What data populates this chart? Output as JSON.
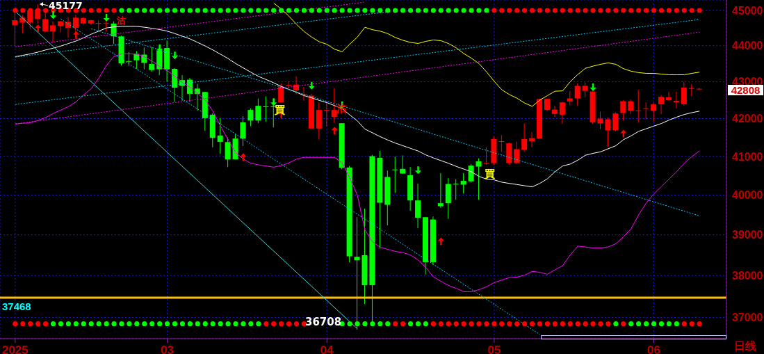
{
  "chart_data": {
    "type": "candlestick",
    "log": true,
    "grid": true,
    "categories": [
      "2025",
      null,
      null,
      null,
      null,
      null,
      null,
      null,
      null,
      null,
      null,
      null,
      null,
      null,
      null,
      null,
      null,
      null,
      null,
      null,
      "03",
      null,
      null,
      null,
      null,
      null,
      null,
      null,
      null,
      null,
      null,
      null,
      null,
      null,
      null,
      null,
      null,
      null,
      null,
      null,
      null,
      "04",
      null,
      null,
      null,
      null,
      null,
      null,
      null,
      null,
      null,
      null,
      null,
      null,
      null,
      null,
      null,
      null,
      null,
      null,
      null,
      null,
      null,
      "05",
      null,
      null,
      null,
      null,
      null,
      null,
      null,
      null,
      null,
      null,
      null,
      null,
      null,
      null,
      null,
      null,
      null,
      null,
      null,
      null,
      "06",
      null,
      null,
      null,
      null,
      null,
      null
    ],
    "ohlc": [
      [
        44575,
        45030,
        44000,
        44719
      ],
      [
        44650,
        44875,
        44344,
        44794
      ],
      [
        44650,
        45060,
        44469,
        45000
      ],
      [
        44762,
        45177,
        44625,
        45030
      ],
      [
        44406,
        44940,
        44375,
        44750
      ],
      [
        44406,
        44688,
        44094,
        44575
      ],
      [
        44562,
        44700,
        44375,
        44688
      ],
      [
        44500,
        44812,
        44219,
        44675
      ],
      [
        44500,
        44875,
        44344,
        44794
      ],
      [
        44625,
        44812,
        44581,
        44781
      ],
      [
        44625,
        44731,
        44594,
        44719
      ],
      [
        44630,
        44719,
        44406,
        44640
      ],
      [
        44630,
        44700,
        44406,
        44645
      ],
      [
        44625,
        44688,
        44050,
        44262
      ],
      [
        44262,
        44281,
        43441,
        43507
      ],
      [
        43570,
        43822,
        43441,
        43555
      ],
      [
        43770,
        43849,
        43355,
        43592
      ],
      [
        43750,
        43947,
        43342,
        43520
      ],
      [
        43487,
        43967,
        43276,
        43322
      ],
      [
        43868,
        44000,
        43178,
        43342
      ],
      [
        43934,
        44145,
        42994,
        43342
      ],
      [
        43355,
        43375,
        42450,
        42838
      ],
      [
        43046,
        43180,
        42481,
        42888
      ],
      [
        43056,
        43106,
        42450,
        42669
      ],
      [
        42812,
        42938,
        42212,
        42669
      ],
      [
        42719,
        42719,
        41673,
        42012
      ],
      [
        42106,
        42137,
        41240,
        41488
      ],
      [
        41550,
        42025,
        41068,
        41383
      ],
      [
        41376,
        41500,
        40720,
        40922
      ],
      [
        41469,
        41580,
        40920,
        40922
      ],
      [
        41901,
        42062,
        41272,
        41469
      ],
      [
        42231,
        42275,
        41796,
        41950
      ],
      [
        42343,
        42540,
        41876,
        41950
      ],
      [
        42330,
        42600,
        41920,
        42320
      ],
      [
        42330,
        42540,
        41765,
        42320
      ],
      [
        42437,
        42950,
        42437,
        42868
      ],
      [
        42890,
        43012,
        42825,
        42910
      ],
      [
        42762,
        43150,
        42669,
        42919
      ],
      [
        42650,
        42856,
        42481,
        42662
      ],
      [
        41735,
        42669,
        41735,
        42619
      ],
      [
        41735,
        42437,
        41444,
        42231
      ],
      [
        42220,
        42419,
        41796,
        42231
      ],
      [
        42043,
        42825,
        41889,
        42231
      ],
      [
        41876,
        41876,
        40663,
        40705
      ],
      [
        40711,
        40753,
        38326,
        38469
      ],
      [
        38457,
        39441,
        36708,
        38371
      ],
      [
        38497,
        39659,
        37317,
        37767
      ],
      [
        41006,
        41040,
        36830,
        37767
      ],
      [
        40964,
        41145,
        38657,
        39806
      ],
      [
        40464,
        40633,
        39235,
        39753
      ],
      [
        40660,
        40994,
        40060,
        40645
      ],
      [
        40675,
        41025,
        40545,
        40554
      ],
      [
        40512,
        40723,
        39600,
        39865
      ],
      [
        39865,
        40295,
        39165,
        39428
      ],
      [
        39441,
        39441,
        38028,
        38326
      ],
      [
        39383,
        39459,
        38257,
        38326
      ],
      [
        39794,
        40565,
        39676,
        39718
      ],
      [
        40286,
        40440,
        39400,
        39794
      ],
      [
        40290,
        40410,
        39880,
        40280
      ],
      [
        40365,
        40565,
        40040,
        40268
      ],
      [
        40759,
        40800,
        40320,
        40353
      ],
      [
        40870,
        40948,
        39880,
        40735
      ],
      [
        40818,
        41240,
        40780,
        40830
      ],
      [
        40825,
        41520,
        40783,
        41457
      ],
      [
        41390,
        41560,
        41117,
        41400
      ],
      [
        40825,
        41362,
        40783,
        41342
      ],
      [
        40825,
        41390,
        40807,
        41190
      ],
      [
        41170,
        41870,
        41117,
        41457
      ],
      [
        41400,
        41640,
        41240,
        41480
      ],
      [
        41470,
        42531,
        41470,
        42525
      ],
      [
        42231,
        42544,
        42200,
        42531
      ],
      [
        42125,
        42343,
        42043,
        42243
      ],
      [
        42105,
        42450,
        41860,
        42437
      ],
      [
        42462,
        42750,
        42356,
        42544
      ],
      [
        42544,
        42950,
        42343,
        42887
      ],
      [
        42750,
        42981,
        42575,
        42887
      ],
      [
        41900,
        42744,
        41858,
        42731
      ],
      [
        41870,
        42187,
        41716,
        42000
      ],
      [
        41685,
        42031,
        41259,
        41981
      ],
      [
        41691,
        42168,
        41660,
        42137
      ],
      [
        42150,
        42494,
        41950,
        42469
      ],
      [
        42212,
        42512,
        42125,
        42469
      ],
      [
        42205,
        42775,
        41890,
        42218
      ],
      [
        42275,
        42437,
        41980,
        42281
      ],
      [
        42212,
        42437,
        41920,
        42381
      ],
      [
        42387,
        42637,
        42125,
        42587
      ],
      [
        42494,
        42719,
        42481,
        42575
      ],
      [
        42437,
        42731,
        42275,
        42481
      ],
      [
        42387,
        42994,
        42343,
        42837
      ],
      [
        42820,
        42931,
        42606,
        42825
      ],
      [
        42800,
        42830,
        42780,
        42808
      ]
    ],
    "series": [
      {
        "type": "line",
        "color": "#ffffff",
        "values": [
          43691,
          43730,
          43770,
          43820,
          43880,
          43930,
          43990,
          44060,
          44130,
          44220,
          44325,
          44410,
          44500,
          44530,
          44544,
          44544,
          44544,
          44520,
          44490,
          44455,
          44410,
          44340,
          44265,
          44190,
          44090,
          43990,
          43880,
          43760,
          43640,
          43500,
          43380,
          43260,
          43145,
          43060,
          42970,
          42870,
          42790,
          42710,
          42620,
          42560,
          42490,
          42430,
          42350,
          42270,
          42100,
          41940,
          41720,
          41620,
          41520,
          41430,
          41350,
          41280,
          41210,
          41140,
          41040,
          40960,
          40890,
          40820,
          40740,
          40670,
          40600,
          40480,
          40410,
          40390,
          40331,
          40300,
          40271,
          40240,
          40211,
          40300,
          40420,
          40600,
          40750,
          40800,
          40900,
          41030,
          41080,
          41120,
          41200,
          41280,
          41440,
          41540,
          41660,
          41730,
          41800,
          41870,
          41960,
          42040,
          42110,
          42160,
          42200
        ]
      },
      {
        "type": "line",
        "color": "#ff00ff",
        "values": [
          41858,
          41875,
          41889,
          41950,
          42030,
          42137,
          42230,
          42323,
          42450,
          42640,
          42810,
          43100,
          43450,
          43700,
          43770,
          43770,
          43760,
          43690,
          43570,
          43420,
          43300,
          43150,
          42970,
          42850,
          42680,
          42500,
          42200,
          41800,
          41440,
          41100,
          40930,
          40820,
          40780,
          40750,
          40720,
          40760,
          40830,
          40930,
          40976,
          40976,
          40976,
          40976,
          40976,
          40830,
          40450,
          40000,
          39120,
          38830,
          38690,
          38640,
          38590,
          38560,
          38500,
          38380,
          38200,
          37970,
          37860,
          37760,
          37690,
          37611,
          37611,
          37660,
          37730,
          37830,
          37890,
          37950,
          37961,
          38010,
          38100,
          38080,
          38030,
          38140,
          38240,
          38500,
          38720,
          38700,
          38674,
          38674,
          38700,
          38780,
          38950,
          39150,
          39500,
          39800,
          40030,
          40220,
          40410,
          40600,
          40820,
          40994,
          41145
        ]
      },
      {
        "type": "line",
        "color": "#ffff00",
        "values": [
          null,
          null,
          null,
          null,
          null,
          null,
          null,
          null,
          null,
          null,
          null,
          null,
          null,
          null,
          null,
          null,
          null,
          null,
          null,
          null,
          null,
          null,
          null,
          null,
          null,
          null,
          null,
          null,
          null,
          null,
          null,
          null,
          null,
          null,
          45210,
          45040,
          44836,
          44600,
          44400,
          44240,
          44110,
          44040,
          43900,
          43830,
          44040,
          44240,
          44519,
          44450,
          44410,
          44340,
          44230,
          44150,
          44090,
          44062,
          44120,
          44160,
          44140,
          44060,
          43940,
          43780,
          43650,
          43500,
          43270,
          43010,
          42780,
          42650,
          42550,
          42420,
          42330,
          42500,
          42620,
          42740,
          42750,
          43000,
          43200,
          43370,
          43430,
          43480,
          43520,
          43480,
          43360,
          43290,
          43250,
          43230,
          43230,
          43210,
          43191,
          43191,
          43191,
          43230,
          43263
        ]
      },
      {
        "type": "line",
        "color": "#40d8d8",
        "line_style": "solid",
        "values": [
          44975,
          null,
          null,
          null,
          null,
          null,
          null,
          null,
          null,
          null,
          null,
          null,
          null,
          null,
          null,
          null,
          null,
          null,
          null,
          null,
          null,
          null,
          null,
          null,
          null,
          null,
          null,
          null,
          null,
          null,
          null,
          null,
          null,
          null,
          null,
          null,
          null,
          null,
          null,
          null,
          null,
          null,
          null,
          null,
          null,
          36733,
          null,
          null,
          null,
          null,
          null,
          null,
          null,
          null,
          null,
          null,
          null,
          null,
          null,
          null,
          null,
          null,
          null,
          null,
          null,
          null,
          null,
          null,
          null,
          null,
          null,
          null,
          null,
          null,
          null,
          null,
          null,
          null,
          null,
          null,
          null,
          null,
          null,
          null,
          null,
          null,
          null,
          null,
          null,
          null,
          null
        ]
      },
      {
        "type": "line",
        "color": "#00ccff",
        "line_style": "dotted",
        "values": [
          43680,
          null,
          null,
          null,
          null,
          null,
          null,
          null,
          null,
          null,
          null,
          null,
          null,
          null,
          null,
          null,
          null,
          null,
          null,
          null,
          null,
          null,
          null,
          null,
          null,
          null,
          null,
          null,
          null,
          null,
          null,
          null,
          null,
          null,
          null,
          null,
          null,
          null,
          null,
          null,
          null,
          null,
          null,
          null,
          null,
          null,
          null,
          null,
          null,
          44960,
          null,
          null,
          null,
          null,
          null,
          null,
          null,
          null,
          null,
          null,
          null,
          null,
          null,
          null,
          null,
          null,
          null,
          null,
          null,
          null,
          null,
          null,
          null,
          null,
          null,
          null,
          null,
          null,
          null,
          null,
          null,
          null,
          null,
          null,
          null,
          null,
          null,
          null,
          null,
          null,
          null
        ]
      },
      {
        "type": "line",
        "color": "#00ccff",
        "line_style": "dotted",
        "values": [
          42380,
          null,
          null,
          null,
          null,
          null,
          null,
          null,
          null,
          null,
          null,
          null,
          null,
          null,
          null,
          null,
          null,
          null,
          null,
          null,
          null,
          null,
          null,
          null,
          null,
          null,
          null,
          null,
          null,
          null,
          null,
          null,
          null,
          null,
          null,
          null,
          null,
          null,
          null,
          null,
          null,
          null,
          null,
          null,
          null,
          null,
          null,
          null,
          null,
          null,
          null,
          null,
          null,
          null,
          null,
          null,
          null,
          null,
          null,
          null,
          null,
          null,
          null,
          null,
          null,
          null,
          null,
          null,
          null,
          null,
          null,
          null,
          null,
          null,
          null,
          null,
          null,
          null,
          null,
          null,
          null,
          null,
          null,
          null,
          null,
          null,
          null,
          null,
          null,
          null,
          44740
        ]
      },
      {
        "type": "line",
        "color": "#ff00ff",
        "line_style": "dotted",
        "values": [
          43969,
          null,
          null,
          null,
          null,
          null,
          null,
          null,
          null,
          null,
          null,
          null,
          null,
          null,
          null,
          null,
          null,
          null,
          null,
          null,
          null,
          null,
          null,
          null,
          null,
          null,
          null,
          null,
          null,
          null,
          null,
          null,
          null,
          null,
          null,
          null,
          null,
          null,
          null,
          null,
          null,
          null,
          null,
          null,
          null,
          null,
          45240,
          null,
          null,
          null,
          null,
          null,
          null,
          null,
          null,
          null,
          null,
          null,
          null,
          null,
          null,
          null,
          null,
          null,
          null,
          null,
          null,
          null,
          null,
          null,
          null,
          null,
          null,
          null,
          null,
          null,
          null,
          null,
          null,
          null,
          null,
          null,
          null,
          null,
          null,
          null,
          null,
          null,
          null,
          null,
          null
        ]
      },
      {
        "type": "line",
        "color": "#ff00ff",
        "line_style": "dotted",
        "values": [
          41858,
          null,
          null,
          null,
          null,
          null,
          null,
          null,
          null,
          null,
          null,
          null,
          null,
          null,
          null,
          null,
          null,
          null,
          null,
          null,
          null,
          null,
          null,
          null,
          null,
          null,
          null,
          null,
          null,
          null,
          null,
          null,
          null,
          null,
          null,
          null,
          null,
          null,
          null,
          null,
          null,
          null,
          null,
          null,
          null,
          null,
          null,
          null,
          null,
          null,
          null,
          null,
          null,
          null,
          null,
          null,
          null,
          null,
          null,
          null,
          null,
          null,
          null,
          null,
          null,
          null,
          null,
          null,
          null,
          null,
          null,
          null,
          null,
          null,
          null,
          null,
          null,
          null,
          null,
          null,
          null,
          null,
          null,
          null,
          null,
          null,
          null,
          null,
          null,
          null,
          44381
        ]
      },
      {
        "type": "line",
        "color": "#00ccff",
        "line_style": "dotted",
        "values": [
          null,
          null,
          null,
          null,
          null,
          null,
          44755,
          null,
          null,
          null,
          null,
          null,
          null,
          null,
          null,
          null,
          null,
          null,
          null,
          null,
          null,
          null,
          null,
          null,
          null,
          null,
          null,
          null,
          null,
          null,
          null,
          null,
          null,
          null,
          null,
          null,
          null,
          null,
          null,
          null,
          null,
          null,
          null,
          null,
          null,
          null,
          null,
          null,
          null,
          null,
          null,
          null,
          null,
          null,
          null,
          null,
          null,
          null,
          null,
          null,
          null,
          null,
          null,
          null,
          null,
          null,
          null,
          null,
          null,
          36600,
          null,
          null,
          null,
          null,
          null,
          null,
          null,
          null,
          null,
          null,
          null,
          null,
          null,
          null,
          null,
          null,
          null,
          null,
          null,
          null,
          null
        ]
      },
      {
        "type": "line",
        "color": "#00ccff",
        "line_style": "dotted",
        "values": [
          null,
          null,
          null,
          null,
          null,
          null,
          null,
          null,
          null,
          null,
          44475,
          null,
          null,
          null,
          null,
          null,
          null,
          null,
          null,
          null,
          null,
          null,
          null,
          null,
          null,
          null,
          null,
          null,
          null,
          null,
          null,
          null,
          null,
          null,
          null,
          null,
          null,
          null,
          null,
          null,
          null,
          null,
          null,
          null,
          null,
          null,
          null,
          null,
          null,
          null,
          null,
          null,
          null,
          null,
          null,
          null,
          null,
          null,
          null,
          null,
          null,
          null,
          null,
          null,
          null,
          null,
          null,
          null,
          null,
          null,
          null,
          null,
          null,
          null,
          null,
          null,
          null,
          null,
          null,
          null,
          null,
          null,
          null,
          null,
          null,
          null,
          null,
          null,
          null,
          null,
          39474
        ]
      },
      {
        "type": "scatter",
        "marker": "circle",
        "values": [
          45000,
          45000,
          45000,
          45000,
          45000,
          45000,
          45000,
          45000,
          45000,
          45000,
          45000,
          45000,
          45000,
          45000,
          45000,
          45000,
          45000,
          45000,
          45000,
          45000,
          45000,
          45000,
          45000,
          45000,
          45000,
          45000,
          45000,
          45000,
          45000,
          45000,
          45000,
          45000,
          45000,
          45000,
          45000,
          45000,
          45000,
          45000,
          45000,
          45000,
          45000,
          45000,
          45000,
          45000,
          45000,
          45000,
          45000,
          45000,
          45000,
          45000,
          45000,
          45000,
          45000,
          45000,
          45000,
          45000,
          45000,
          45000,
          45000,
          45000,
          45000,
          45000,
          45000,
          45000,
          45000,
          45000,
          45000,
          45000,
          45000,
          45000,
          45000,
          45000,
          45000,
          45000,
          45000,
          45000,
          45000,
          45000,
          45000,
          45000,
          45000,
          45000,
          45000,
          45000,
          45000,
          45000,
          45000,
          45000,
          45000,
          45000,
          45000
        ],
        "colors": [
          "#ff0000",
          "#ff0000",
          "#ff0000",
          "#ff0000",
          "#ff0000",
          "#ff0000",
          "#ff0000",
          "#ff0000",
          "#ff0000",
          "#ff0000",
          "#ff0000",
          "#ff0000",
          "#ff0000",
          "#ff0000",
          "#00ff00",
          "#00ff00",
          "#00ff00",
          "#00ff00",
          "#00ff00",
          "#00ff00",
          "#00ff00",
          "#00ff00",
          "#00ff00",
          "#00ff00",
          "#00ff00",
          "#00ff00",
          "#00ff00",
          "#00ff00",
          "#00ff00",
          "#00ff00",
          "#00ff00",
          "#00ff00",
          "#00ff00",
          "#00ff00",
          "#00ff00",
          "#00ff00",
          "#00ff00",
          "#00ff00",
          "#00ff00",
          "#00ff00",
          "#00ff00",
          "#00ff00",
          "#00ff00",
          "#00ff00",
          "#00ff00",
          "#00ff00",
          "#00ff00",
          "#00ff00",
          "#00ff00",
          "#00ff00",
          "#00ff00",
          "#00ff00",
          "#00ff00",
          "#00ff00",
          "#00ff00",
          "#00ff00",
          "#00ff00",
          "#00ff00",
          "#00ff00",
          "#00ff00",
          "#00ff00",
          "#00ff00",
          "#00ff00",
          "#ff0000",
          "#ff0000",
          "#ff0000",
          "#ff0000",
          "#ff0000",
          "#ff0000",
          "#ff0000",
          "#ff0000",
          "#ff0000",
          "#ff0000",
          "#ff0000",
          "#ff0000",
          "#ff0000",
          "#ff0000",
          "#ff0000",
          "#ff0000",
          "#ff0000",
          "#ff0000",
          "#ff0000",
          "#ff0000",
          "#ff0000",
          "#ff0000",
          "#ff0000",
          "#ff0000",
          "#ff0000",
          "#ff0000",
          "#ff0000",
          "#ff0000"
        ]
      },
      {
        "type": "scatter",
        "marker": "circle",
        "values": [
          36850,
          36850,
          36850,
          36850,
          36850,
          36850,
          36850,
          36850,
          36850,
          36850,
          36850,
          36850,
          36850,
          36850,
          36850,
          36850,
          36850,
          36850,
          36850,
          36850,
          36850,
          36850,
          36850,
          36850,
          36850,
          36850,
          36850,
          36850,
          36850,
          36850,
          36850,
          36850,
          36850,
          36850,
          36850,
          36850,
          36850,
          36850,
          36850,
          null,
          null,
          null,
          null,
          36850,
          36850,
          36850,
          36850,
          36850,
          36850,
          36850,
          36850,
          36850,
          36850,
          36850,
          36850,
          36850,
          36850,
          36850,
          36850,
          36850,
          36850,
          36850,
          36850,
          36850,
          36850,
          36850,
          36850,
          36850,
          36850,
          36850,
          36850,
          36850,
          36850,
          36850,
          36850,
          36850,
          36850,
          36850,
          36850,
          36850,
          36850,
          36850,
          36850,
          36850,
          36850,
          36850,
          36850,
          36850,
          36850,
          36850,
          36850
        ],
        "colors": [
          "#ff0000",
          "#ff0000",
          "#ff0000",
          "#ff0000",
          "#ff0000",
          "#00ff00",
          "#00ff00",
          "#00ff00",
          "#00ff00",
          "#00ff00",
          "#00ff00",
          "#00ff00",
          "#00ff00",
          "#00ff00",
          "#00ff00",
          "#00ff00",
          "#00ff00",
          "#00ff00",
          "#00ff00",
          "#00ff00",
          "#00ff00",
          "#00ff00",
          "#00ff00",
          "#00ff00",
          "#00ff00",
          "#00ff00",
          "#00ff00",
          "#00ff00",
          "#00ff00",
          "#00ff00",
          "#00ff00",
          "#00ff00",
          "#00ff00",
          "#ff0000",
          "#ff0000",
          "#ff0000",
          "#ff0000",
          "#ff0000",
          "#ff0000",
          null,
          null,
          null,
          null,
          "#00ff00",
          "#00ff00",
          "#00ff00",
          "#00ff00",
          "#00ff00",
          "#00ff00",
          "#00ff00",
          "#ff0000",
          "#ff0000",
          "#00ff00",
          "#00ff00",
          "#00ff00",
          "#ff0000",
          "#ff0000",
          "#ff0000",
          "#ff0000",
          "#ff0000",
          "#ff0000",
          "#ff0000",
          "#ff0000",
          "#ff0000",
          "#ff0000",
          "#ff0000",
          "#ff0000",
          "#ff0000",
          "#ff0000",
          "#ff0000",
          "#ff0000",
          "#ff0000",
          "#ff0000",
          "#ff0000",
          "#ff0000",
          "#ff0000",
          "#ff0000",
          "#ff0000",
          "#ff0000",
          "#00ff00",
          "#ff0000",
          "#00ff00",
          "#00ff00",
          "#00ff00",
          "#00ff00",
          "#00ff00",
          "#00ff00",
          "#00ff00",
          "#ff0000",
          "#ff0000",
          "#ff0000"
        ]
      },
      {
        "type": "scatter",
        "marker": "triangle",
        "color": "#ff0000",
        "values": [
          null,
          null,
          null,
          44500,
          null,
          null,
          null,
          null,
          44312,
          null,
          null,
          null,
          null,
          null,
          null,
          null,
          null,
          null,
          null,
          null,
          null,
          null,
          null,
          null,
          null,
          null,
          null,
          null,
          null,
          null,
          40994,
          null,
          null,
          null,
          null,
          42117,
          null,
          null,
          null,
          null,
          null,
          null,
          41691,
          null,
          null,
          null,
          null,
          null,
          null,
          null,
          null,
          null,
          null,
          null,
          null,
          null,
          38846,
          null,
          null,
          null,
          null,
          null,
          null,
          null,
          null,
          null,
          null,
          null,
          null,
          null,
          null,
          null,
          null,
          null,
          null,
          null,
          null,
          null,
          null,
          null,
          41611,
          null,
          null,
          null,
          null,
          null,
          null,
          null,
          null,
          null,
          null
        ]
      },
      {
        "type": "scatter",
        "marker": "triangle",
        "color": "#00ff00",
        "values": [
          null,
          null,
          null,
          null,
          null,
          44856,
          null,
          null,
          null,
          null,
          null,
          null,
          44780,
          null,
          null,
          null,
          null,
          null,
          null,
          43915,
          null,
          43717,
          null,
          null,
          null,
          null,
          null,
          null,
          null,
          null,
          null,
          null,
          null,
          null,
          42437,
          null,
          null,
          null,
          null,
          42881,
          null,
          null,
          null,
          42350,
          null,
          null,
          null,
          null,
          null,
          null,
          null,
          null,
          null,
          40632,
          null,
          null,
          null,
          null,
          null,
          null,
          null,
          null,
          null,
          null,
          null,
          null,
          null,
          null,
          null,
          null,
          null,
          null,
          null,
          null,
          null,
          null,
          42837,
          null,
          null,
          null,
          null,
          null,
          null,
          null,
          null,
          null,
          null,
          null,
          null,
          null,
          null
        ]
      }
    ],
    "ylim": [
      36500,
      45300
    ],
    "yticks": [
      37000,
      38000,
      39000,
      40000,
      41000,
      42000,
      43000,
      44000,
      45000
    ],
    "ref_lines": [
      {
        "axis": "y",
        "value": 37468,
        "label": "37468",
        "color": "#ffc000"
      }
    ],
    "annotations": [
      "45177",
      "36708",
      "42808",
      "買",
      "買",
      "沽",
      "沽",
      "日线"
    ]
  }
}
